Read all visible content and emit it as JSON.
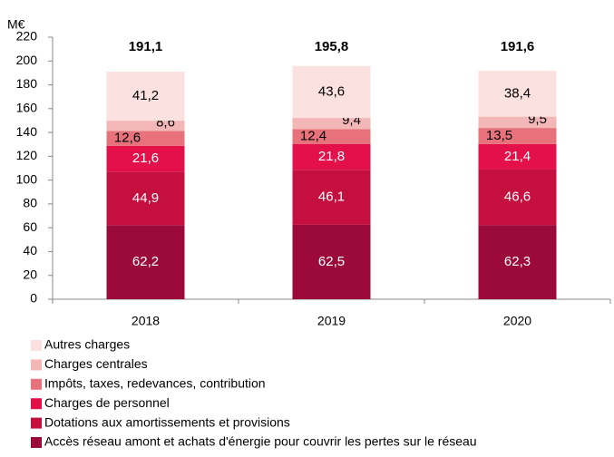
{
  "chart_data": {
    "type": "stacked_bar",
    "y_axis_label": "M€",
    "categories": [
      "2018",
      "2019",
      "2020"
    ],
    "ylim": [
      0,
      220
    ],
    "yticks": [
      0,
      20,
      40,
      60,
      80,
      100,
      120,
      140,
      160,
      180,
      200,
      220
    ],
    "series": [
      {
        "name": "Accès réseau amont et achats d'énergie pour couvrir les pertes sur le réseau",
        "color": "#9b0a3a",
        "values": [
          62.2,
          62.5,
          62.3
        ],
        "value_labels": [
          "62,2",
          "62,5",
          "62,3"
        ]
      },
      {
        "name": "Dotations aux amortissements et provisions",
        "color": "#c5103f",
        "values": [
          44.9,
          46.1,
          46.6
        ],
        "value_labels": [
          "44,9",
          "46,1",
          "46,6"
        ]
      },
      {
        "name": "Charges de personnel",
        "color": "#e3104a",
        "values": [
          21.6,
          21.8,
          21.4
        ],
        "value_labels": [
          "21,6",
          "21,8",
          "21,4"
        ]
      },
      {
        "name": "Impôts, taxes, redevances, contribution",
        "color": "#e7727b",
        "values": [
          12.6,
          12.4,
          13.5
        ],
        "value_labels": [
          "12,6",
          "12,4",
          "13,5"
        ]
      },
      {
        "name": "Charges centrales",
        "color": "#f4b7b8",
        "values": [
          8.6,
          9.4,
          9.5
        ],
        "value_labels": [
          "8,6",
          "9,4",
          "9,5"
        ]
      },
      {
        "name": "Autres charges",
        "color": "#fbe1df",
        "values": [
          41.2,
          43.6,
          38.4
        ],
        "value_labels": [
          "41,2",
          "43,6",
          "38,4"
        ]
      }
    ],
    "totals": {
      "values": [
        191.1,
        195.8,
        191.6
      ],
      "value_labels": [
        "191,1",
        "195,8",
        "191,6"
      ]
    }
  }
}
